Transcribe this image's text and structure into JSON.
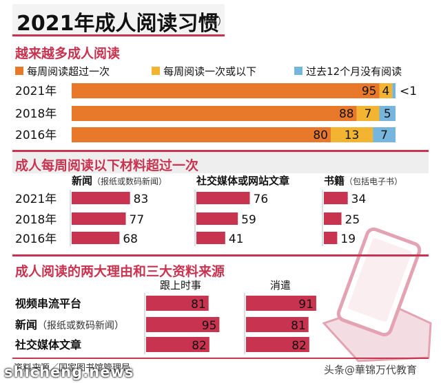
{
  "header": {
    "title": "2021年成人阅读习惯",
    "unit": "（%）"
  },
  "section1": {
    "title": "越来越多成人阅读",
    "legend": [
      {
        "label": "每周阅读超过一次",
        "color": "#e8792b"
      },
      {
        "label": "每周阅读一次或以下",
        "color": "#f2b431"
      },
      {
        "label": "过去12个月没有阅读",
        "color": "#76b6dd"
      }
    ]
  },
  "section2": {
    "title": "成人每周阅读以下材料超过一次"
  },
  "section3": {
    "title": "成人阅读的两大理由和三大资料来源"
  },
  "footer": {
    "source": "资料来源／国家图书馆管理局",
    "watermark": "头条@華锦万代教育",
    "site": "shicheng.news"
  },
  "chart_data": [
    {
      "type": "bar",
      "stacked": true,
      "orientation": "horizontal",
      "categories": [
        "2021年",
        "2018年",
        "2016年"
      ],
      "series": [
        {
          "name": "每周阅读超过一次",
          "values": [
            95,
            88,
            80
          ],
          "labels": [
            "95",
            "88",
            "80"
          ],
          "color": "#e8792b"
        },
        {
          "name": "每周阅读一次或以下",
          "values": [
            4,
            7,
            13
          ],
          "labels": [
            "4",
            "7",
            "13"
          ],
          "color": "#f2b431"
        },
        {
          "name": "过去12个月没有阅读",
          "values": [
            1,
            5,
            7
          ],
          "labels": [
            "<1",
            "5",
            "7"
          ],
          "color": "#76b6dd"
        }
      ]
    },
    {
      "type": "bar",
      "orientation": "horizontal",
      "categories": [
        "2021年",
        "2018年",
        "2016年"
      ],
      "groups": [
        {
          "name": "新闻",
          "note": "（报纸或数码新闻）",
          "values": [
            83,
            77,
            68
          ]
        },
        {
          "name": "社交媒体或网站文章",
          "note": "",
          "values": [
            76,
            59,
            41
          ]
        },
        {
          "name": "书籍",
          "note": "（包括电子书）",
          "values": [
            34,
            25,
            19
          ]
        }
      ],
      "color": "#c8334f"
    },
    {
      "type": "bar",
      "orientation": "horizontal",
      "categories": [
        {
          "name": "视频串流平台",
          "note": ""
        },
        {
          "name": "新闻",
          "note": "（报纸或数码新闻）"
        },
        {
          "name": "社交媒体文章",
          "note": ""
        }
      ],
      "series": [
        {
          "name": "跟上时事",
          "values": [
            81,
            95,
            82
          ]
        },
        {
          "name": "消遣",
          "values": [
            91,
            81,
            82
          ]
        }
      ],
      "color": "#c8334f"
    }
  ]
}
